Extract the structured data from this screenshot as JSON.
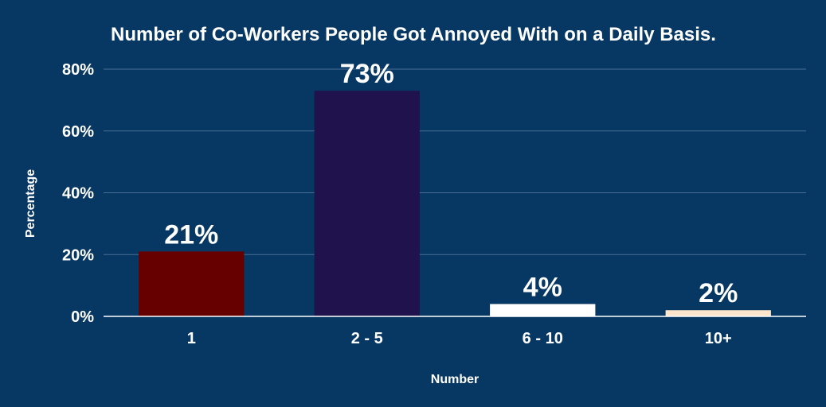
{
  "chart_data": {
    "type": "bar",
    "title": "Number of Co-Workers People Got Annoyed With on a Daily Basis.",
    "xlabel": "Number",
    "ylabel": "Percentage",
    "categories": [
      "1",
      "2 - 5",
      "6 - 10",
      "10+"
    ],
    "values": [
      21,
      73,
      4,
      2
    ],
    "data_labels": [
      "21%",
      "73%",
      "4%",
      "2%"
    ],
    "bar_colors": [
      "#660000",
      "#20124d",
      "#ffffff",
      "#fce5cd"
    ],
    "ylim": [
      0,
      80
    ],
    "yticks": [
      0,
      20,
      40,
      60,
      80
    ],
    "ytick_labels": [
      "0%",
      "20%",
      "40%",
      "60%",
      "80%"
    ],
    "grid": true,
    "legend": "none",
    "background": "#073763"
  }
}
